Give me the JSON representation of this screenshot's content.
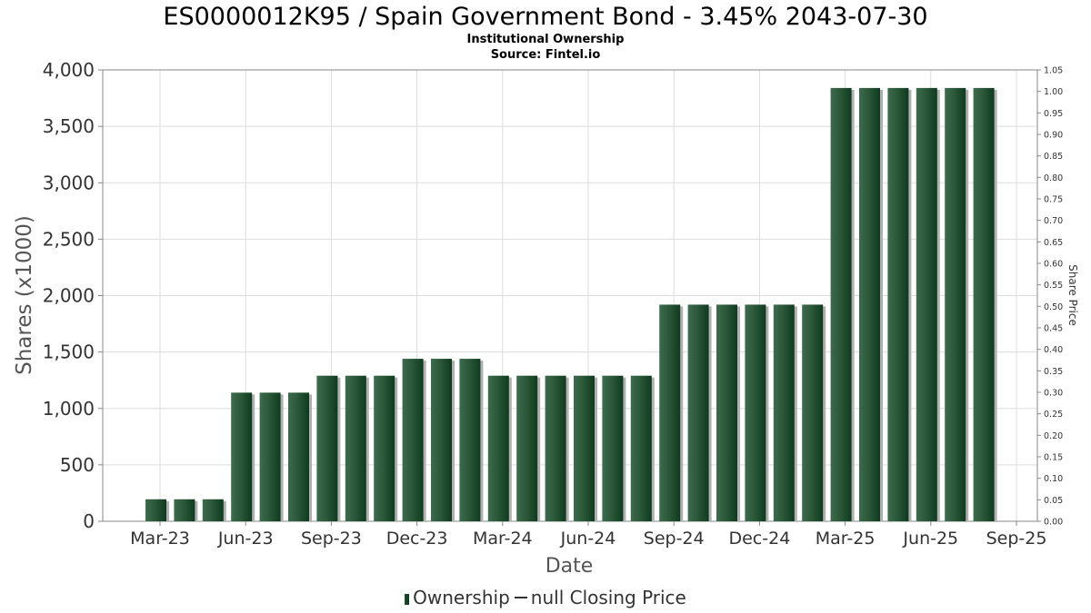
{
  "chart_data": {
    "type": "bar",
    "title": "ES0000012K95 / Spain Government Bond - 3.45% 2043-07-30",
    "subtitle": "Institutional Ownership",
    "source": "Source: Fintel.io",
    "xlabel": "Date",
    "ylabel": "Shares (x1000)",
    "y2label": "Share Price",
    "ylim": [
      0,
      4000
    ],
    "y2lim": [
      0,
      1.05
    ],
    "grid": true,
    "x_tick_labels": [
      "Mar-23",
      "Jun-23",
      "Sep-23",
      "Dec-23",
      "Mar-24",
      "Jun-24",
      "Sep-24",
      "Dec-24",
      "Mar-25",
      "Jun-25",
      "Sep-25"
    ],
    "y_tick_labels": [
      "0",
      "500",
      "1,000",
      "1,500",
      "2,000",
      "2,500",
      "3,000",
      "3,500",
      "4,000"
    ],
    "y2_tick_labels": [
      "0.00",
      "0.05",
      "0.10",
      "0.15",
      "0.20",
      "0.25",
      "0.30",
      "0.35",
      "0.40",
      "0.45",
      "0.50",
      "0.55",
      "0.60",
      "0.65",
      "0.70",
      "0.75",
      "0.80",
      "0.85",
      "0.90",
      "0.95",
      "1.00",
      "1.05"
    ],
    "series": [
      {
        "name": "Ownership",
        "values": [
          195,
          195,
          195,
          1140,
          1140,
          1140,
          1290,
          1290,
          1290,
          1440,
          1440,
          1440,
          1290,
          1290,
          1290,
          1290,
          1290,
          1290,
          1920,
          1920,
          1920,
          1920,
          1920,
          1920,
          3840,
          3840,
          3840,
          3840,
          3840,
          3840
        ]
      },
      {
        "name": "null Closing Price",
        "values": []
      }
    ],
    "legend": [
      "Ownership",
      "null Closing Price"
    ],
    "legend_position": "bottom",
    "bar_color": "#1a4d2e"
  }
}
